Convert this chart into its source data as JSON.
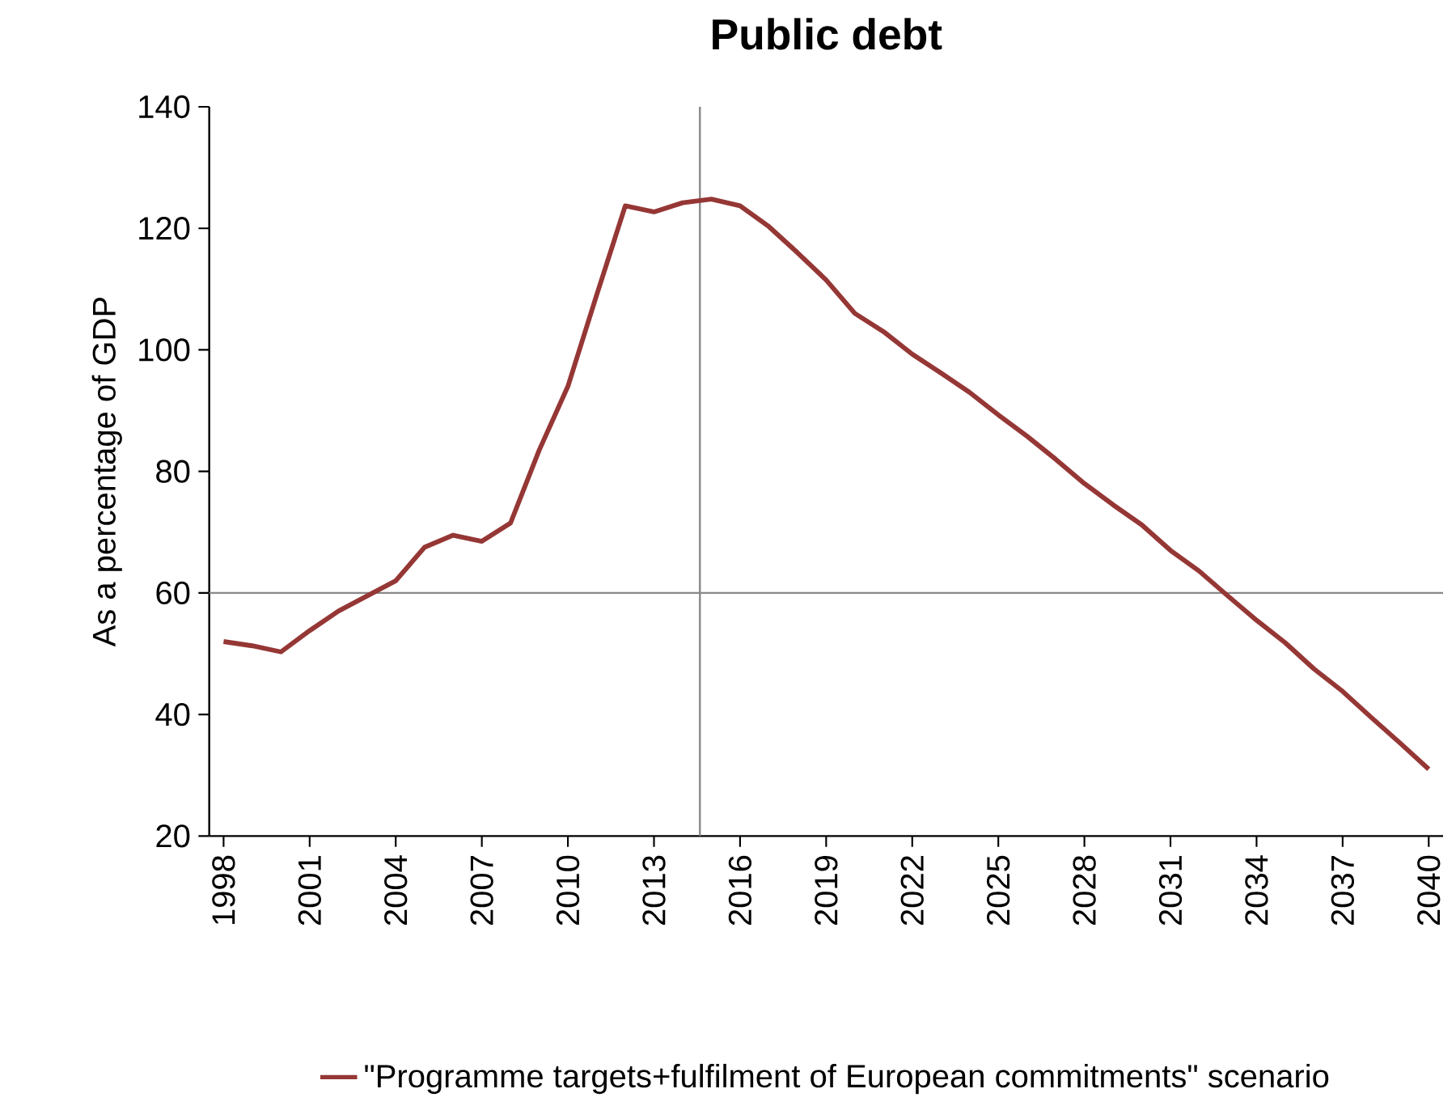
{
  "chart_data": {
    "type": "line",
    "title": "Public debt",
    "ylabel": "As a percentage of GDP",
    "x": [
      1998,
      1999,
      2000,
      2001,
      2002,
      2003,
      2004,
      2005,
      2006,
      2007,
      2008,
      2009,
      2010,
      2011,
      2012,
      2013,
      2014,
      2015,
      2016,
      2017,
      2018,
      2019,
      2020,
      2021,
      2022,
      2023,
      2024,
      2025,
      2026,
      2027,
      2028,
      2029,
      2030,
      2031,
      2032,
      2033,
      2034,
      2035,
      2036,
      2037,
      2038,
      2039,
      2040
    ],
    "series": [
      {
        "name": "\"Programme targets+fulfilment of European commitments\" scenario",
        "color": "#953735",
        "values": [
          52,
          51.3,
          50.3,
          53.8,
          57,
          59.5,
          62,
          67.5,
          69.5,
          68.5,
          71.5,
          83.5,
          94,
          109,
          123.7,
          122.7,
          124.2,
          124.8,
          123.7,
          120.3,
          116,
          111.5,
          106,
          103,
          99.3,
          96.2,
          93,
          89.3,
          85.8,
          82,
          78,
          74.5,
          71.2,
          67,
          63.6,
          59.5,
          55.5,
          51.8,
          47.5,
          43.8,
          39.5,
          35.3,
          31
        ]
      }
    ],
    "xlim": [
      1997.5,
      2040.5
    ],
    "xticks": [
      1998,
      2001,
      2004,
      2007,
      2010,
      2013,
      2016,
      2019,
      2022,
      2025,
      2028,
      2031,
      2034,
      2037,
      2040
    ],
    "ylim": [
      20,
      140
    ],
    "yticks": [
      20,
      40,
      60,
      80,
      100,
      120,
      140
    ],
    "ref_lines": [
      {
        "axis": "y",
        "value": 60,
        "color": "#898989"
      },
      {
        "axis": "x",
        "value": 2014.6,
        "color": "#898989"
      }
    ],
    "grid": false,
    "legend": "bottom",
    "marker": "none",
    "line_style": "solid"
  }
}
